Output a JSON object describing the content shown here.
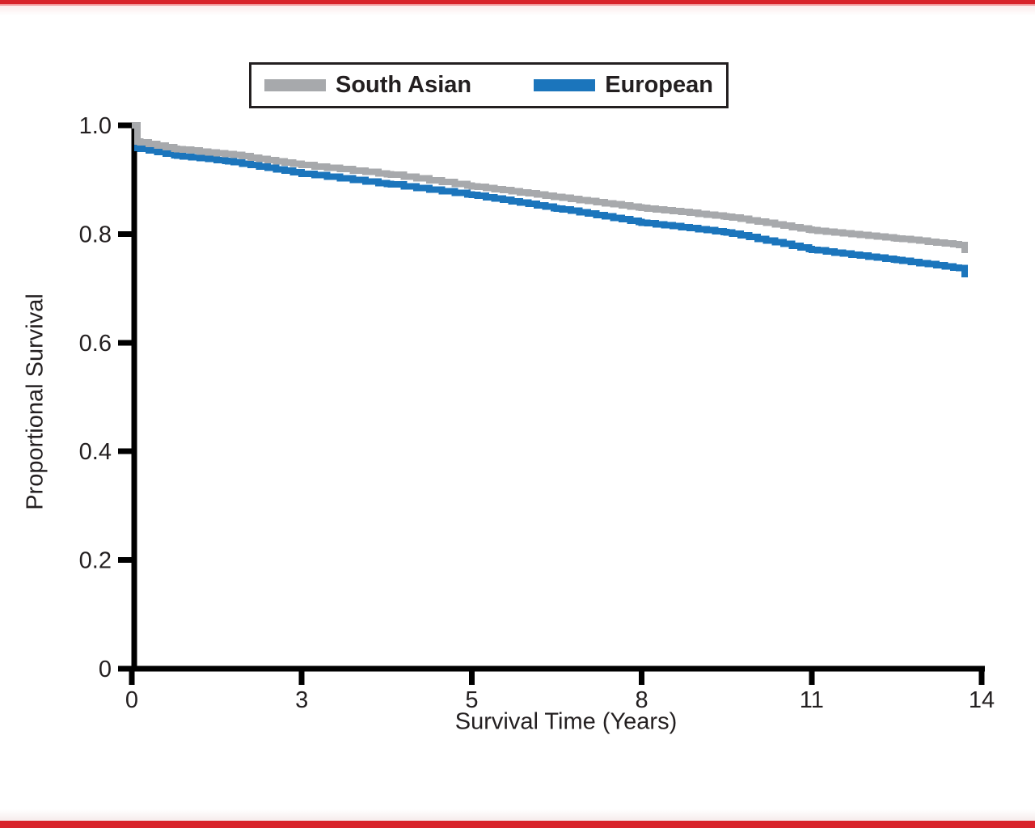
{
  "page": {
    "background": "#ffffff",
    "top_bar_color": "#d8232a",
    "bottom_bar_color": "#d8232a"
  },
  "legend": {
    "items": [
      {
        "label": "South Asian",
        "color": "#a7a9ac"
      },
      {
        "label": "European",
        "color": "#1b75bc"
      }
    ]
  },
  "chart_data": {
    "type": "line",
    "subtype": "kaplan-meier-step-survival",
    "title": "",
    "xlabel": "Survival Time (Years)",
    "ylabel": "Proportional Survival",
    "x_tick_labels": [
      "0",
      "3",
      "5",
      "8",
      "11",
      "14"
    ],
    "x_tick_values": [
      0,
      3,
      5,
      8,
      11,
      14
    ],
    "x_ticks_evenly_spaced": true,
    "y_tick_labels": [
      "1.0",
      "0.8",
      "0.6",
      "0.4",
      "0.2",
      "0"
    ],
    "y_tick_values": [
      1.0,
      0.8,
      0.6,
      0.4,
      0.2,
      0
    ],
    "xlim": [
      0,
      14
    ],
    "ylim": [
      0,
      1.0
    ],
    "grid": false,
    "legend_position": "top-center",
    "axis_color": "#000000",
    "series": [
      {
        "name": "South Asian",
        "color": "#a7a9ac",
        "points": [
          [
            0,
            1.0
          ],
          [
            0.1,
            0.97
          ],
          [
            0.8,
            0.956
          ],
          [
            1.7,
            0.947
          ],
          [
            3,
            0.927
          ],
          [
            4,
            0.91
          ],
          [
            5,
            0.888
          ],
          [
            6.5,
            0.868
          ],
          [
            8,
            0.848
          ],
          [
            9.5,
            0.832
          ],
          [
            11,
            0.807
          ],
          [
            12.5,
            0.792
          ],
          [
            13.6,
            0.78
          ],
          [
            13.7,
            0.765
          ]
        ]
      },
      {
        "name": "European",
        "color": "#1b75bc",
        "points": [
          [
            0,
            1.0
          ],
          [
            0.1,
            0.958
          ],
          [
            0.8,
            0.944
          ],
          [
            1.7,
            0.934
          ],
          [
            3,
            0.911
          ],
          [
            4,
            0.892
          ],
          [
            5,
            0.872
          ],
          [
            6.5,
            0.847
          ],
          [
            8,
            0.821
          ],
          [
            9.5,
            0.803
          ],
          [
            11,
            0.771
          ],
          [
            12.5,
            0.752
          ],
          [
            13.6,
            0.737
          ],
          [
            13.7,
            0.72
          ]
        ]
      }
    ]
  }
}
